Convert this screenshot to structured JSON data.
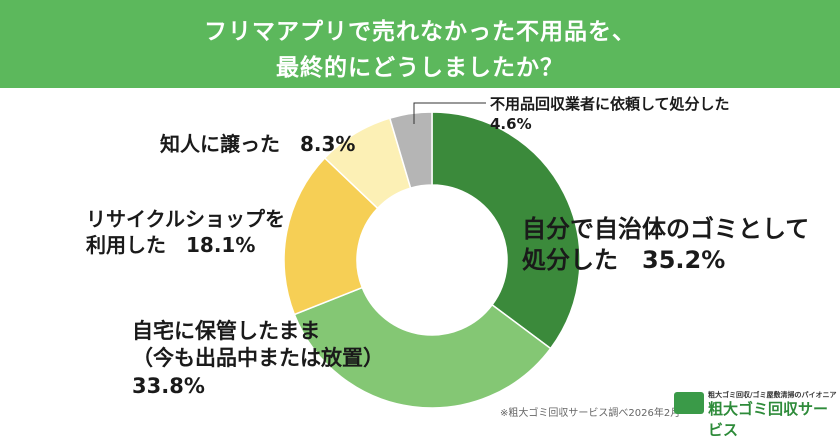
{
  "chart_data": {
    "type": "donut",
    "title": [
      "フリマアプリで売れなかった不用品を、",
      "最終的にどうしましたか？"
    ],
    "categories": [
      "自分で自治体のゴミとして\n処分した",
      "自宅に保管したまま\n（今も出品中または放置）",
      "リサイクルショップを\n利用した",
      "知人に譲った",
      "不用品回収業者に依頼して処分した"
    ],
    "values": [
      35.2,
      33.8,
      18.1,
      8.3,
      4.6
    ],
    "value_labels": [
      "35.2%",
      "33.8%",
      "18.1%",
      "8.3%",
      "4.6%"
    ],
    "colors": [
      "#3b8a3b",
      "#84c774",
      "#f6cf55",
      "#fcf0b5",
      "#b5b5b5"
    ],
    "source": "※粗大ゴミ回収サービス調べ2026年2月",
    "logo": {
      "tagline": "粗大ゴミ回収/ゴミ屋敷清掃のパイオニア",
      "name": "粗大ゴミ回収サービス"
    }
  }
}
